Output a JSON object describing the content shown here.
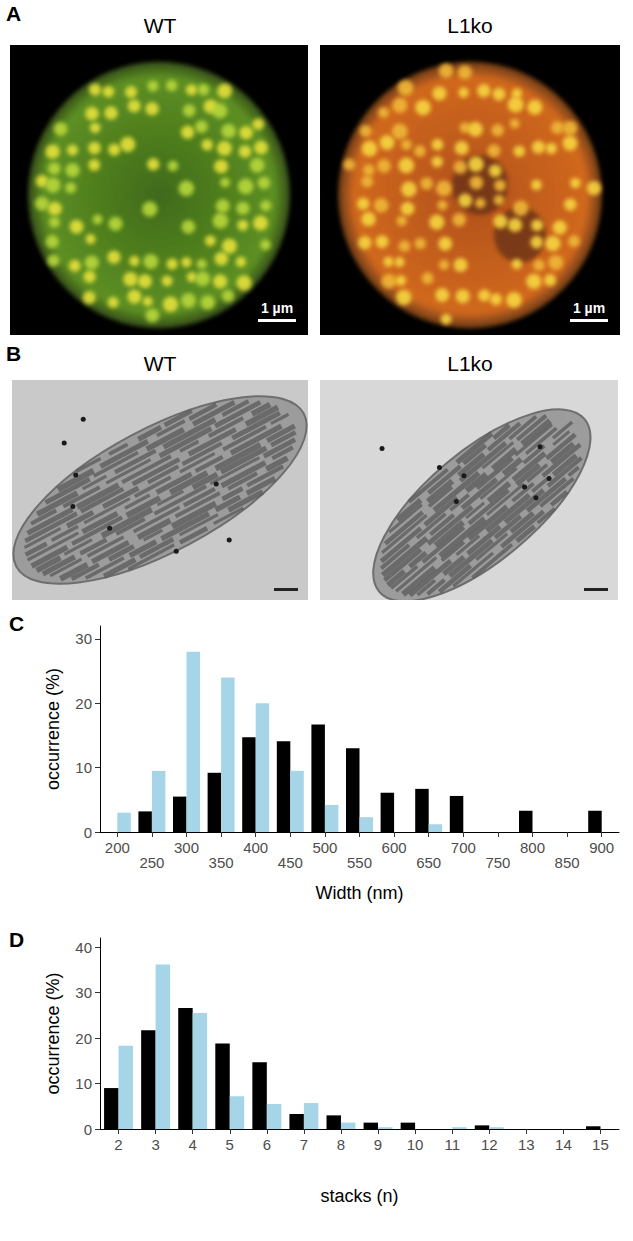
{
  "images": {
    "A": {
      "label": "A",
      "panels": [
        {
          "title": "WT",
          "scale_bar": "1 µm"
        },
        {
          "title": "L1ko",
          "scale_bar": "1 µm"
        }
      ]
    },
    "B": {
      "label": "B",
      "panels": [
        {
          "title": "WT"
        },
        {
          "title": "L1ko"
        }
      ]
    }
  },
  "chart_data": [
    {
      "type": "bar",
      "title": "C",
      "x_label": "Width (nm)",
      "y_label": "occurrence (%)",
      "categories": [
        200,
        250,
        300,
        350,
        400,
        450,
        500,
        550,
        600,
        650,
        700,
        750,
        800,
        850,
        900
      ],
      "series": [
        {
          "color": "#000000",
          "values": [
            0,
            3.2,
            5.5,
            9.2,
            14.7,
            14.1,
            16.7,
            13,
            6.1,
            6.7,
            5.6,
            0,
            3.3,
            0,
            3.3
          ]
        },
        {
          "color": "#a6d5e8",
          "values": [
            3,
            9.5,
            28,
            24,
            20,
            9.5,
            4.2,
            2.3,
            0,
            1.2,
            0,
            0,
            0,
            0,
            0
          ]
        }
      ],
      "ylim": [
        0,
        32
      ],
      "yticks": [
        0,
        10,
        20,
        30
      ],
      "grid": false
    },
    {
      "type": "bar",
      "title": "D",
      "x_label": "stacks (n)",
      "y_label": "occurrence (%)",
      "categories": [
        2,
        3,
        4,
        5,
        6,
        7,
        8,
        9,
        10,
        11,
        12,
        13,
        14,
        15
      ],
      "series": [
        {
          "color": "#000000",
          "values": [
            9,
            21.7,
            26.6,
            18.8,
            14.7,
            3.3,
            3,
            1.4,
            1.4,
            0,
            0.8,
            0,
            0,
            0.6
          ]
        },
        {
          "color": "#a6d5e8",
          "values": [
            18.3,
            36.2,
            25.5,
            7.2,
            5.5,
            5.7,
            1.4,
            0.4,
            0,
            0.4,
            0.4,
            0,
            0,
            0
          ]
        }
      ],
      "ylim": [
        0,
        42
      ],
      "yticks": [
        0,
        10,
        20,
        30,
        40
      ],
      "grid": false
    }
  ]
}
